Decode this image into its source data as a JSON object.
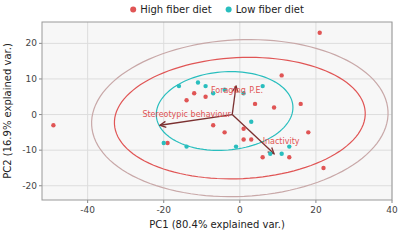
{
  "chart_data": {
    "type": "scatter",
    "xlabel": "PC1 (80.4% explained var.)",
    "ylabel": "PC2 (16.9% explained var.)",
    "xlim": [
      -52,
      40
    ],
    "ylim": [
      -24,
      26
    ],
    "xticks": [
      -40,
      -20,
      0,
      20,
      40
    ],
    "yticks": [
      -20,
      -10,
      0,
      10,
      20
    ],
    "grid": true,
    "legend": "top",
    "series": [
      {
        "name": "High fiber diet",
        "color": "#E05555",
        "x": [
          -49,
          -19,
          -14,
          -12,
          -9,
          -7,
          -4,
          1,
          1,
          3,
          4,
          6,
          9,
          11,
          13,
          16,
          18,
          21,
          22
        ],
        "values": [
          -3,
          -8,
          4,
          6,
          5,
          -3,
          -5,
          -4,
          -7,
          -7,
          3,
          -12,
          2,
          11,
          -12,
          3,
          -5,
          23,
          -15
        ]
      },
      {
        "name": "Low fiber diet",
        "color": "#29BEBE",
        "x": [
          -20,
          -16,
          -14,
          -11,
          -9,
          -7,
          -4,
          -1,
          1,
          3,
          6,
          8,
          11,
          13
        ],
        "values": [
          -8,
          8,
          -9,
          9,
          8,
          6,
          7,
          -9,
          6,
          -2,
          8,
          -11,
          -11,
          -9
        ]
      }
    ],
    "ellipses": [
      {
        "color": "#C8A8A8",
        "center": [
          0,
          -1
        ],
        "width": 78,
        "height": 44,
        "angle": 3
      },
      {
        "color": "#E05555",
        "center": [
          0,
          -1
        ],
        "width": 66,
        "height": 34,
        "angle": 3
      },
      {
        "color": "#29BEBE",
        "center": [
          -4,
          1
        ],
        "width": 36,
        "height": 22,
        "angle": 5
      }
    ],
    "arrows": {
      "color": "#7B3030",
      "origin": [
        -2,
        0
      ],
      "ends": [
        [
          -21,
          -3
        ],
        [
          -1,
          8
        ],
        [
          9,
          -11
        ]
      ]
    },
    "annotations": [
      {
        "text": "Stereotypic behaviour",
        "x": -14,
        "y": -1.2,
        "color": "#E05555"
      },
      {
        "text": "Foraging",
        "x": -3,
        "y": 5.5,
        "color": "#E05555"
      },
      {
        "text": "P.E.",
        "x": 2.5,
        "y": 5.5,
        "color": "#E05555"
      },
      {
        "text": "Inactivity",
        "x": 6,
        "y": -6,
        "color": "#E05555"
      }
    ]
  }
}
